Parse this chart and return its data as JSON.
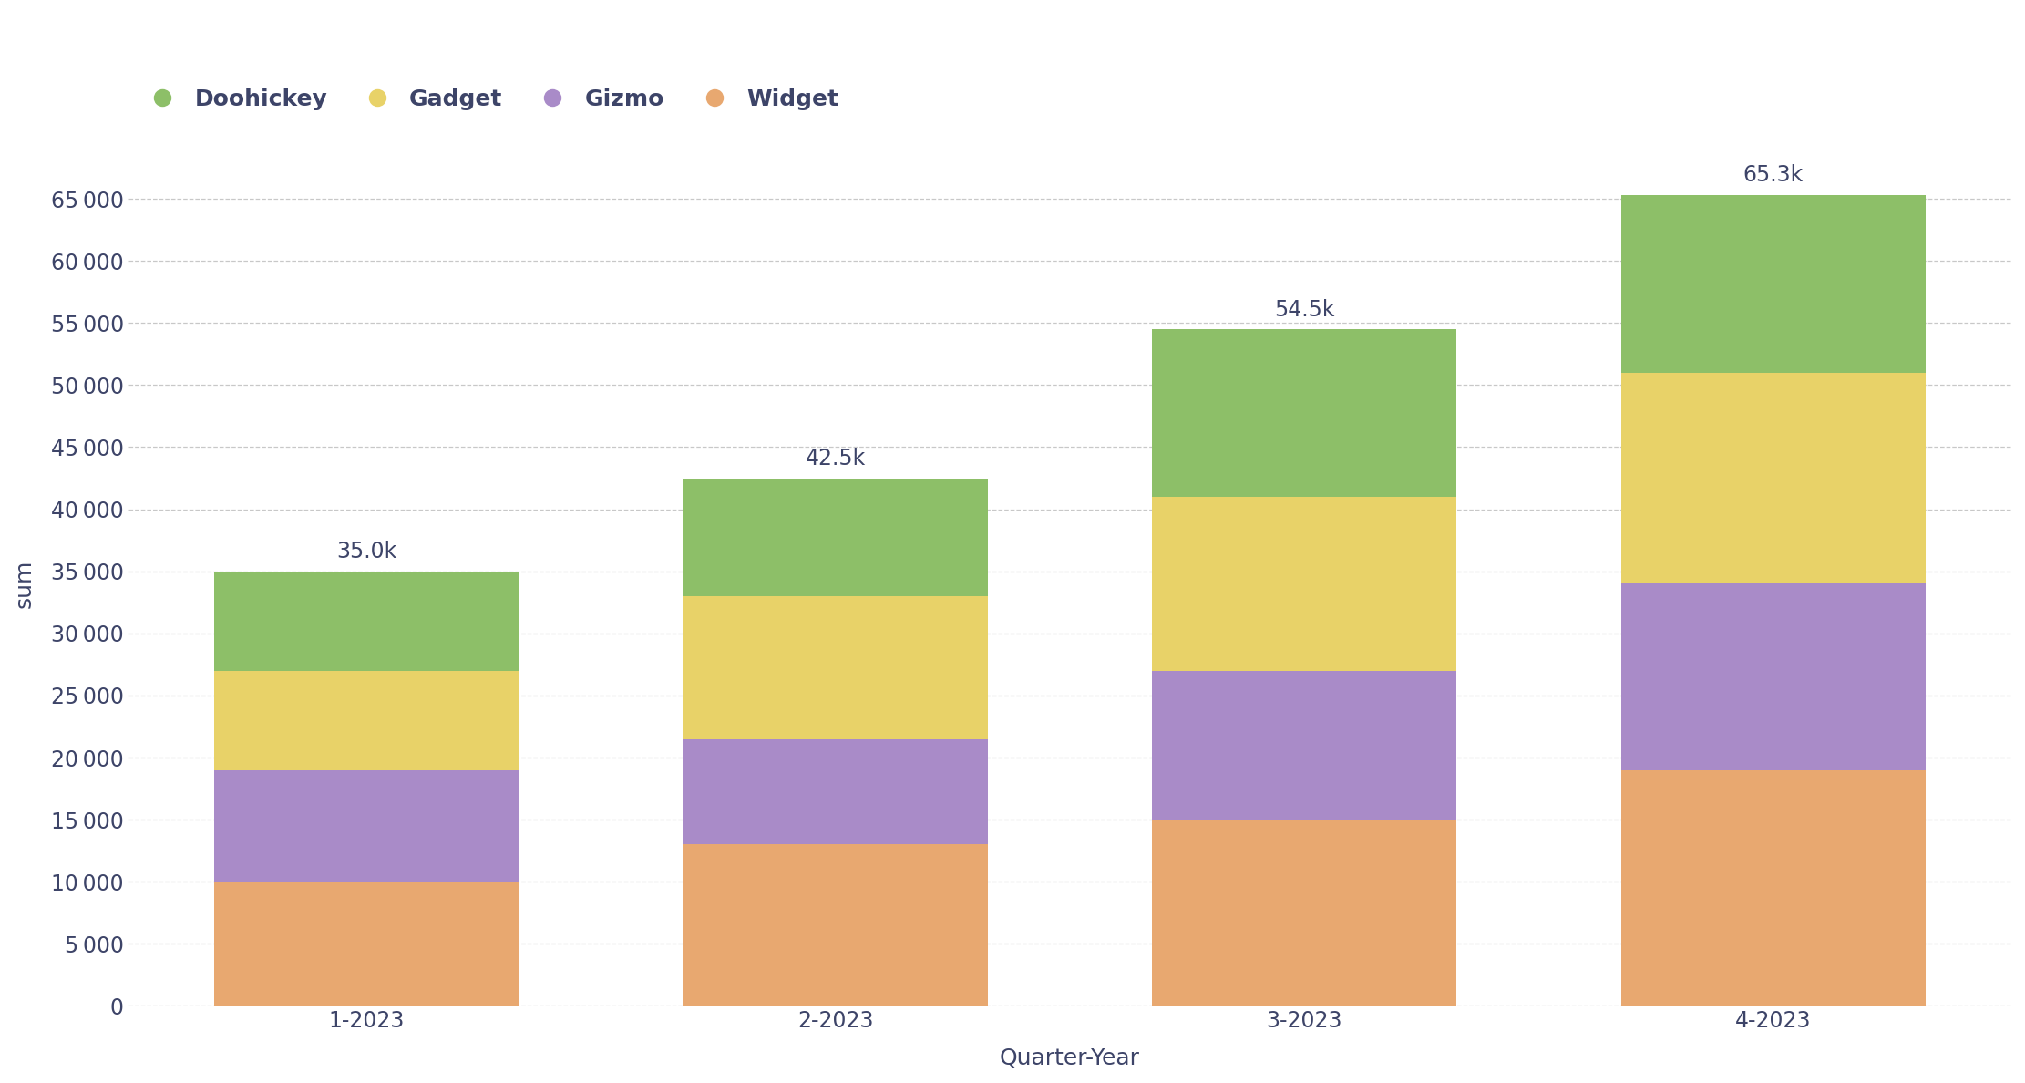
{
  "categories": [
    "1-2023",
    "2-2023",
    "3-2023",
    "4-2023"
  ],
  "series": {
    "Widget": [
      10000,
      13000,
      15000,
      19000
    ],
    "Gizmo": [
      9000,
      8500,
      12000,
      15000
    ],
    "Gadget": [
      8000,
      11500,
      14000,
      17000
    ],
    "Doohickey": [
      8000,
      9500,
      13500,
      14300
    ]
  },
  "colors": {
    "Widget": "#E8A870",
    "Gizmo": "#A98BC8",
    "Gadget": "#E8D268",
    "Doohickey": "#8DBF68"
  },
  "totals": [
    "35.0k",
    "42.5k",
    "54.5k",
    "65.3k"
  ],
  "xlabel": "Quarter-Year",
  "ylabel": "sum",
  "ylim": [
    0,
    68000
  ],
  "yticks": [
    0,
    5000,
    10000,
    15000,
    20000,
    25000,
    30000,
    35000,
    40000,
    45000,
    50000,
    55000,
    60000,
    65000
  ],
  "legend_order": [
    "Doohickey",
    "Gadget",
    "Gizmo",
    "Widget"
  ],
  "stack_order": [
    "Widget",
    "Gizmo",
    "Gadget",
    "Doohickey"
  ],
  "background_color": "#ffffff",
  "grid_color": "#bbbbbb",
  "text_color": "#3d4468",
  "label_fontsize": 18,
  "tick_fontsize": 17,
  "annotation_fontsize": 17,
  "legend_fontsize": 18,
  "bar_width": 0.65
}
